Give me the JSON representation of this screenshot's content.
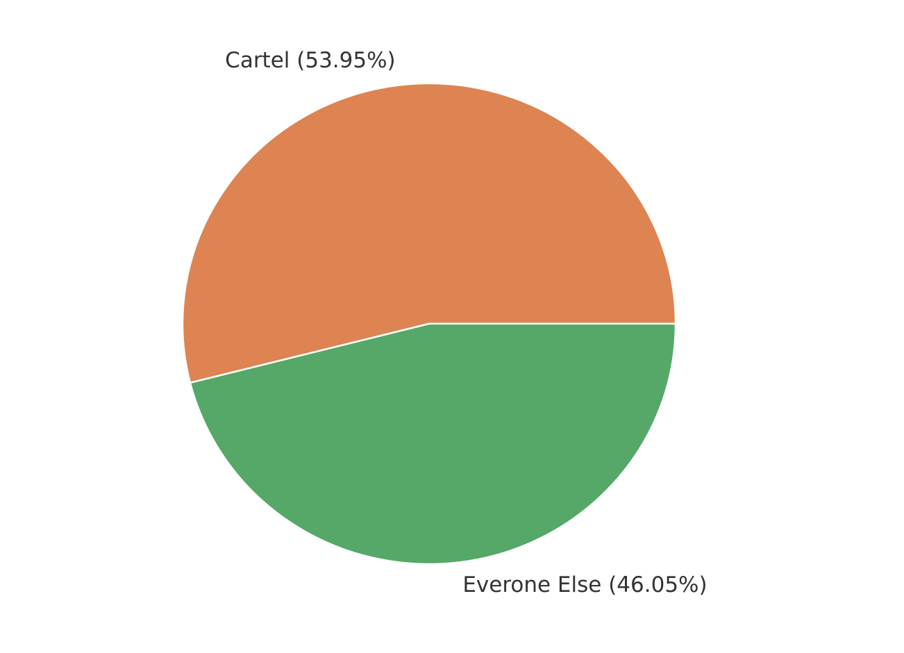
{
  "chart_data": {
    "type": "pie",
    "values": [
      53.95,
      46.05
    ],
    "value_labels": [
      "Cartel (53.95%)",
      "Everone Else (46.05%)"
    ],
    "colors": [
      "#dd8452",
      "#55a868"
    ],
    "start_angle": 0
  }
}
